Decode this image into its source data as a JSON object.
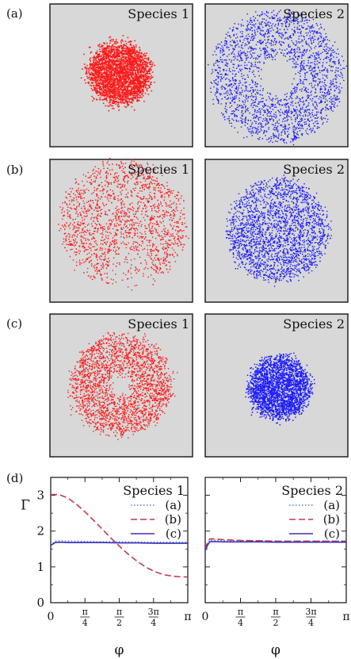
{
  "figure": {
    "panel_labels": [
      "(a)",
      "(b)",
      "(c)",
      "(d)"
    ],
    "species_labels": [
      "Species 1",
      "Species 2"
    ]
  },
  "colors": {
    "species1": "#ff1a1a",
    "species2": "#1a1aff",
    "panel_bg": "#d8d8d8",
    "panel_border": "#222222",
    "line_a": "#4a7dd6",
    "line_b": "#c23a4e",
    "line_c": "#3a2fb8"
  },
  "scatter_panels": [
    {
      "row": "(a)",
      "species": "Species 1",
      "distribution": "disk",
      "density": "dense"
    },
    {
      "row": "(a)",
      "species": "Species 2",
      "distribution": "annulus",
      "density": "sparse"
    },
    {
      "row": "(b)",
      "species": "Species 1",
      "distribution": "disk with lower gap",
      "density": "medium"
    },
    {
      "row": "(b)",
      "species": "Species 2",
      "distribution": "disk",
      "density": "medium"
    },
    {
      "row": "(c)",
      "species": "Species 1",
      "distribution": "annulus",
      "density": "medium"
    },
    {
      "row": "(c)",
      "species": "Species 2",
      "distribution": "disk",
      "density": "dense"
    }
  ],
  "chart_data": [
    {
      "type": "line",
      "panel": "(d)",
      "title": "Species 1",
      "xlabel": "φ",
      "ylabel": "Γ",
      "xlim": [
        0,
        3.14159
      ],
      "ylim": [
        0,
        3.5
      ],
      "x_ticks": [
        {
          "value": 0,
          "label": "0"
        },
        {
          "value": 0.7854,
          "label": "π/4"
        },
        {
          "value": 1.5708,
          "label": "π/2"
        },
        {
          "value": 2.3562,
          "label": "3π/4"
        },
        {
          "value": 3.14159,
          "label": "π"
        }
      ],
      "y_ticks": [
        0,
        1,
        2,
        3
      ],
      "legend": {
        "position": "top-right",
        "entries": [
          "(a)",
          "(b)",
          "(c)"
        ]
      },
      "series": [
        {
          "name": "(a)",
          "style": "dotted",
          "x": [
            0,
            0.1,
            0.2,
            0.4,
            0.8,
            1.2,
            1.6,
            2.0,
            2.4,
            2.8,
            3.14
          ],
          "y": [
            1.6,
            1.72,
            1.73,
            1.72,
            1.71,
            1.7,
            1.7,
            1.69,
            1.69,
            1.69,
            1.69
          ]
        },
        {
          "name": "(b)",
          "style": "dashed",
          "x": [
            0,
            0.2,
            0.4,
            0.6,
            0.8,
            1.0,
            1.2,
            1.4,
            1.6,
            1.8,
            2.0,
            2.2,
            2.4,
            2.6,
            2.8,
            3.0,
            3.14
          ],
          "y": [
            3.02,
            3.02,
            2.92,
            2.74,
            2.52,
            2.28,
            2.03,
            1.78,
            1.55,
            1.33,
            1.14,
            0.98,
            0.86,
            0.78,
            0.74,
            0.72,
            0.72
          ]
        },
        {
          "name": "(c)",
          "style": "solid",
          "x": [
            0,
            0.1,
            0.2,
            0.4,
            0.8,
            1.2,
            1.6,
            2.0,
            2.4,
            2.8,
            3.14
          ],
          "y": [
            1.6,
            1.68,
            1.69,
            1.68,
            1.68,
            1.68,
            1.67,
            1.67,
            1.66,
            1.66,
            1.66
          ]
        }
      ]
    },
    {
      "type": "line",
      "panel": "(d)",
      "title": "Species 2",
      "xlabel": "φ",
      "ylabel": "",
      "xlim": [
        0,
        3.14159
      ],
      "ylim": [
        0,
        3.5
      ],
      "x_ticks": [
        {
          "value": 0,
          "label": "0"
        },
        {
          "value": 0.7854,
          "label": "π/4"
        },
        {
          "value": 1.5708,
          "label": "π/2"
        },
        {
          "value": 2.3562,
          "label": "3π/4"
        },
        {
          "value": 3.14159,
          "label": "π"
        }
      ],
      "y_ticks": [
        0,
        1,
        2,
        3
      ],
      "legend": {
        "position": "top-right",
        "entries": [
          "(a)",
          "(b)",
          "(c)"
        ]
      },
      "series": [
        {
          "name": "(a)",
          "style": "dotted",
          "x": [
            0,
            0.05,
            0.1,
            0.2,
            0.4,
            0.8,
            1.2,
            1.6,
            2.0,
            2.4,
            2.8,
            3.14
          ],
          "y": [
            1.45,
            1.62,
            1.74,
            1.75,
            1.74,
            1.73,
            1.73,
            1.72,
            1.72,
            1.72,
            1.72,
            1.72
          ]
        },
        {
          "name": "(b)",
          "style": "dashed",
          "x": [
            0,
            0.05,
            0.1,
            0.2,
            0.4,
            0.8,
            1.2,
            1.6,
            2.0,
            2.4,
            2.8,
            3.14
          ],
          "y": [
            1.5,
            1.68,
            1.78,
            1.78,
            1.76,
            1.74,
            1.73,
            1.72,
            1.72,
            1.72,
            1.72,
            1.72
          ]
        },
        {
          "name": "(c)",
          "style": "solid",
          "x": [
            0,
            0.05,
            0.1,
            0.2,
            0.4,
            0.8,
            1.2,
            1.6,
            2.0,
            2.4,
            2.8,
            3.14
          ],
          "y": [
            1.45,
            1.6,
            1.7,
            1.71,
            1.7,
            1.7,
            1.7,
            1.69,
            1.69,
            1.69,
            1.69,
            1.69
          ]
        }
      ]
    }
  ]
}
